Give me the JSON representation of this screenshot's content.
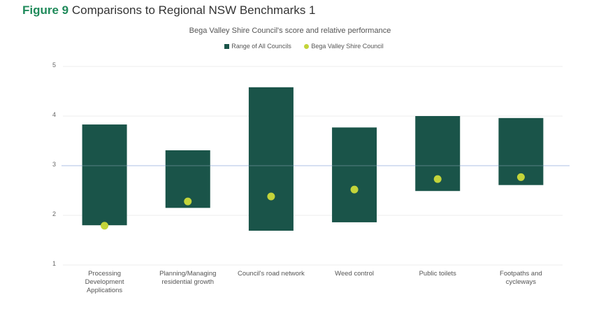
{
  "figure": {
    "label": "Figure 9",
    "title": "Comparisons to Regional NSW Benchmarks 1"
  },
  "colors": {
    "range_bar": "#1a5449",
    "council_dot": "#c3d43a",
    "highlight_line": "#c9d6ee",
    "grid": "#eeeeee"
  },
  "chart_data": {
    "type": "bar",
    "title": "Bega Valley Shire Council's score and relative performance",
    "xlabel": "",
    "ylabel": "",
    "ylim": [
      1,
      5
    ],
    "yticks": [
      1,
      2,
      3,
      4,
      5
    ],
    "grid": true,
    "legend_position": "top",
    "legend": [
      "Range of All Councils",
      "Bega Valley Shire Council"
    ],
    "categories": [
      "Processing Development Applications",
      "Planning/Managing residential growth",
      "Council's road network",
      "Weed control",
      "Public toilets",
      "Footpaths and cycleways"
    ],
    "category_labels_wrapped": [
      "Processing\nDevelopment\nApplications",
      "Planning/Managing\nresidential growth",
      "Council's road network",
      "Weed control",
      "Public toilets",
      "Footpaths and\ncycleways"
    ],
    "series": [
      {
        "name": "Range of All Councils",
        "type": "floating-bar",
        "low": [
          1.8,
          2.15,
          1.69,
          1.86,
          2.49,
          2.61
        ],
        "high": [
          3.83,
          3.31,
          4.58,
          3.77,
          4.0,
          3.96
        ]
      },
      {
        "name": "Bega Valley Shire Council",
        "type": "scatter",
        "values": [
          1.79,
          2.28,
          2.38,
          2.52,
          2.73,
          2.77
        ]
      }
    ],
    "reference_line": 3
  }
}
